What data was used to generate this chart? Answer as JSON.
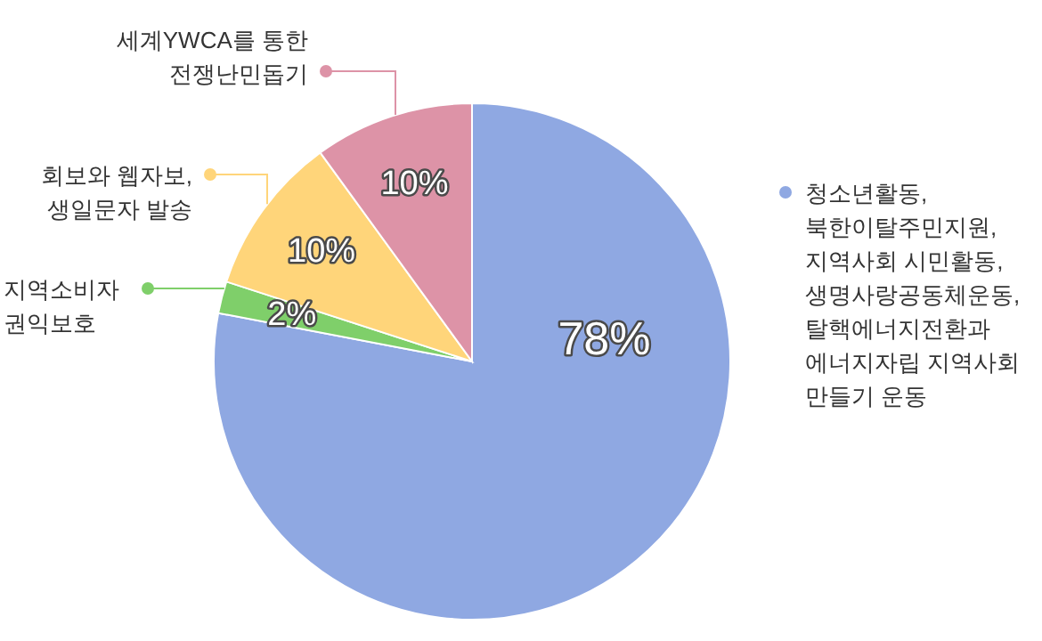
{
  "chart_data": {
    "type": "pie",
    "categories": [
      "청소년활동,\n북한이탈주민지원,\n지역사회 시민활동,\n생명사랑공동체운동,\n탈핵에너지전환과\n에너지자립 지역사회\n만들기 운동",
      "지역소비자\n권익보호",
      "회보와 웹자보,\n생일문자 발송",
      "세계YWCA를 통한\n전쟁난민돕기"
    ],
    "values": [
      78,
      2,
      10,
      10
    ],
    "colors": [
      "#8fa8e2",
      "#7fcf6a",
      "#ffd57a",
      "#dd93a7"
    ],
    "value_labels": [
      "78%",
      "2%",
      "10%",
      "10%"
    ],
    "legend": "left"
  }
}
